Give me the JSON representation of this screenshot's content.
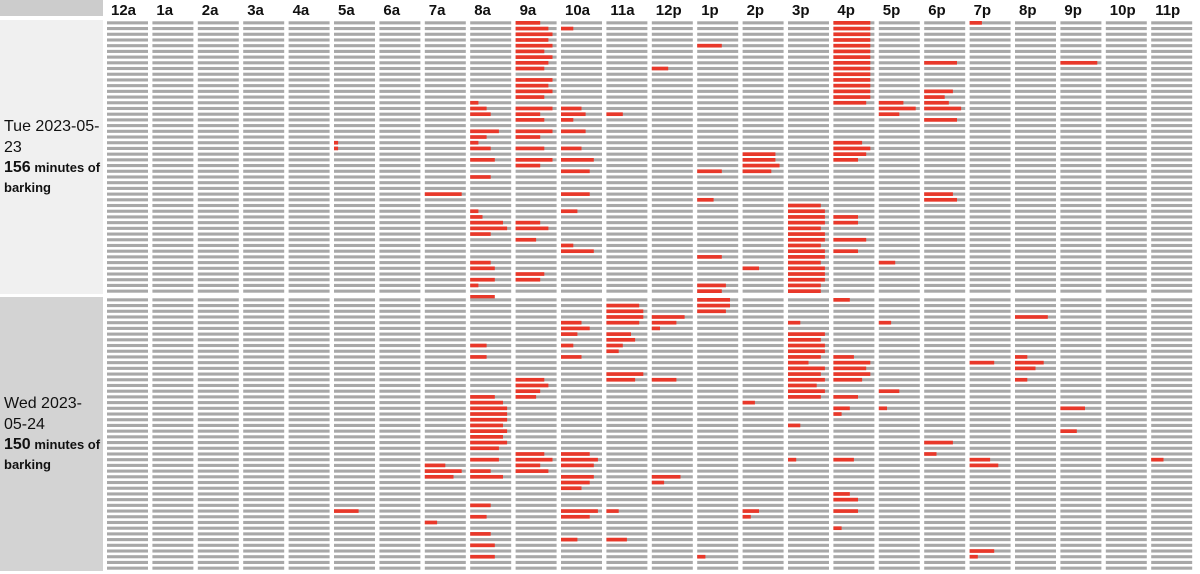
{
  "chart_data": {
    "type": "heatmap",
    "title": "",
    "hours": [
      "12a",
      "1a",
      "2a",
      "3a",
      "4a",
      "5a",
      "6a",
      "7a",
      "8a",
      "9a",
      "10a",
      "11a",
      "12p",
      "1p",
      "2p",
      "3p",
      "4p",
      "5p",
      "6p",
      "7p",
      "8p",
      "9p",
      "10p",
      "11p"
    ],
    "minutes_per_row": 10,
    "rows_per_hour": 6,
    "colors": {
      "bark": "#e8382a",
      "quiet": "#a8a8a8",
      "label_bg_day1": "#f0f0f0",
      "label_bg_day2": "#d3d3d3",
      "header_corner": "#cccccc"
    },
    "days": [
      {
        "date_line": "Tue 2023-05-23",
        "minutes_value": "156",
        "minutes_suffix": "minutes of barking",
        "bark_minutes": {
          "5a": [
            [
              21,
              1
            ],
            [
              22,
              1
            ]
          ],
          "7a": [
            [
              30,
              9
            ]
          ],
          "8a": [
            [
              14,
              2
            ],
            [
              15,
              4
            ],
            [
              16,
              5
            ],
            [
              19,
              7
            ],
            [
              20,
              4
            ],
            [
              21,
              2
            ],
            [
              22,
              5
            ],
            [
              24,
              6
            ],
            [
              27,
              5
            ],
            [
              33,
              2
            ],
            [
              34,
              3
            ],
            [
              35,
              8
            ],
            [
              36,
              9
            ],
            [
              37,
              5
            ],
            [
              42,
              5
            ],
            [
              43,
              6
            ],
            [
              46,
              2
            ],
            [
              48,
              6
            ],
            [
              45,
              6
            ]
          ],
          "9a": [
            [
              0,
              6
            ],
            [
              1,
              8
            ],
            [
              2,
              9
            ],
            [
              3,
              8
            ],
            [
              4,
              9
            ],
            [
              5,
              7
            ],
            [
              6,
              9
            ],
            [
              7,
              8
            ],
            [
              8,
              7
            ],
            [
              10,
              9
            ],
            [
              11,
              8
            ],
            [
              12,
              9
            ],
            [
              13,
              7
            ],
            [
              15,
              9
            ],
            [
              16,
              6
            ],
            [
              17,
              7
            ],
            [
              19,
              9
            ],
            [
              20,
              6
            ],
            [
              22,
              7
            ],
            [
              24,
              9
            ],
            [
              25,
              6
            ],
            [
              35,
              6
            ],
            [
              36,
              8
            ],
            [
              38,
              5
            ],
            [
              44,
              7
            ],
            [
              45,
              6
            ]
          ],
          "10a": [
            [
              1,
              3
            ],
            [
              15,
              5
            ],
            [
              16,
              6
            ],
            [
              17,
              3
            ],
            [
              19,
              6
            ],
            [
              22,
              5
            ],
            [
              24,
              8
            ],
            [
              26,
              7
            ],
            [
              30,
              7
            ],
            [
              33,
              4
            ],
            [
              39,
              3
            ],
            [
              40,
              8
            ]
          ],
          "11a": [
            [
              16,
              4
            ]
          ],
          "12p": [
            [
              8,
              4
            ]
          ],
          "1p": [
            [
              4,
              6
            ],
            [
              26,
              6
            ],
            [
              31,
              4
            ],
            [
              41,
              6
            ],
            [
              46,
              7
            ],
            [
              47,
              6
            ]
          ],
          "2p": [
            [
              23,
              8
            ],
            [
              24,
              8
            ],
            [
              25,
              9
            ],
            [
              26,
              7
            ],
            [
              43,
              4
            ]
          ],
          "3p": [
            [
              32,
              8
            ],
            [
              33,
              9
            ],
            [
              34,
              9
            ],
            [
              35,
              9
            ],
            [
              36,
              8
            ],
            [
              37,
              9
            ],
            [
              38,
              9
            ],
            [
              39,
              8
            ],
            [
              40,
              9
            ],
            [
              41,
              9
            ],
            [
              42,
              8
            ],
            [
              43,
              9
            ],
            [
              44,
              9
            ],
            [
              45,
              9
            ],
            [
              46,
              8
            ],
            [
              47,
              8
            ]
          ],
          "4p": [
            [
              0,
              9
            ],
            [
              1,
              9
            ],
            [
              2,
              9
            ],
            [
              3,
              9
            ],
            [
              4,
              9
            ],
            [
              5,
              9
            ],
            [
              6,
              9
            ],
            [
              7,
              9
            ],
            [
              8,
              9
            ],
            [
              9,
              9
            ],
            [
              10,
              9
            ],
            [
              11,
              9
            ],
            [
              12,
              9
            ],
            [
              13,
              9
            ],
            [
              14,
              8
            ],
            [
              21,
              7
            ],
            [
              22,
              9
            ],
            [
              23,
              8
            ],
            [
              24,
              6
            ],
            [
              34,
              6
            ],
            [
              35,
              6
            ],
            [
              38,
              8
            ],
            [
              40,
              6
            ]
          ],
          "5p": [
            [
              14,
              6
            ],
            [
              15,
              9
            ],
            [
              16,
              5
            ],
            [
              42,
              4
            ]
          ],
          "6p": [
            [
              7,
              8
            ],
            [
              12,
              7
            ],
            [
              13,
              5
            ],
            [
              14,
              6
            ],
            [
              15,
              9
            ],
            [
              17,
              8
            ],
            [
              30,
              7
            ],
            [
              31,
              8
            ]
          ],
          "7p": [
            [
              0,
              3
            ]
          ],
          "9p": [
            [
              7,
              9
            ]
          ]
        }
      },
      {
        "date_line": "Wed 2023-05-24",
        "minutes_value": "150",
        "minutes_suffix": "minutes of barking",
        "bark_minutes": {
          "5a": [
            [
              37,
              6
            ]
          ],
          "7a": [
            [
              29,
              5
            ],
            [
              31,
              7
            ],
            [
              30,
              9
            ],
            [
              39,
              3
            ]
          ],
          "8a": [
            [
              8,
              4
            ],
            [
              10,
              4
            ],
            [
              17,
              6
            ],
            [
              18,
              8
            ],
            [
              19,
              9
            ],
            [
              20,
              9
            ],
            [
              21,
              9
            ],
            [
              22,
              8
            ],
            [
              23,
              9
            ],
            [
              24,
              8
            ],
            [
              25,
              9
            ],
            [
              26,
              7
            ],
            [
              28,
              7
            ],
            [
              30,
              5
            ],
            [
              31,
              8
            ],
            [
              36,
              5
            ],
            [
              38,
              4
            ],
            [
              41,
              5
            ],
            [
              43,
              6
            ],
            [
              45,
              6
            ]
          ],
          "9a": [
            [
              14,
              7
            ],
            [
              15,
              8
            ],
            [
              16,
              6
            ],
            [
              17,
              5
            ],
            [
              27,
              7
            ],
            [
              28,
              9
            ],
            [
              29,
              6
            ],
            [
              30,
              8
            ]
          ],
          "10a": [
            [
              4,
              5
            ],
            [
              5,
              7
            ],
            [
              6,
              4
            ],
            [
              8,
              3
            ],
            [
              10,
              5
            ],
            [
              27,
              7
            ],
            [
              28,
              9
            ],
            [
              29,
              8
            ],
            [
              31,
              8
            ],
            [
              32,
              7
            ],
            [
              33,
              5
            ],
            [
              37,
              9
            ],
            [
              38,
              7
            ],
            [
              42,
              4
            ]
          ],
          "11a": [
            [
              1,
              8
            ],
            [
              2,
              9
            ],
            [
              3,
              9
            ],
            [
              4,
              8
            ],
            [
              6,
              6
            ],
            [
              7,
              7
            ],
            [
              8,
              4
            ],
            [
              9,
              3
            ],
            [
              13,
              9
            ],
            [
              14,
              7
            ],
            [
              37,
              3
            ],
            [
              42,
              5
            ]
          ],
          "12p": [
            [
              3,
              8
            ],
            [
              4,
              6
            ],
            [
              5,
              2
            ],
            [
              14,
              6
            ],
            [
              31,
              7
            ],
            [
              32,
              3
            ]
          ],
          "1p": [
            [
              0,
              8
            ],
            [
              1,
              8
            ],
            [
              2,
              7
            ],
            [
              45,
              2
            ]
          ],
          "2p": [
            [
              18,
              3
            ],
            [
              37,
              4
            ],
            [
              38,
              2
            ]
          ],
          "3p": [
            [
              4,
              3
            ],
            [
              6,
              9
            ],
            [
              7,
              8
            ],
            [
              8,
              9
            ],
            [
              9,
              9
            ],
            [
              10,
              8
            ],
            [
              11,
              5
            ],
            [
              12,
              9
            ],
            [
              13,
              8
            ],
            [
              14,
              9
            ],
            [
              15,
              7
            ],
            [
              16,
              9
            ],
            [
              17,
              8
            ],
            [
              22,
              3
            ],
            [
              28,
              2
            ]
          ],
          "4p": [
            [
              0,
              4
            ],
            [
              10,
              5
            ],
            [
              11,
              9
            ],
            [
              12,
              8
            ],
            [
              13,
              9
            ],
            [
              14,
              7
            ],
            [
              17,
              6
            ],
            [
              19,
              4
            ],
            [
              20,
              2
            ],
            [
              28,
              5
            ],
            [
              34,
              4
            ],
            [
              35,
              6
            ],
            [
              37,
              6
            ],
            [
              40,
              2
            ]
          ],
          "5p": [
            [
              4,
              3
            ],
            [
              16,
              5
            ],
            [
              19,
              2
            ]
          ],
          "6p": [
            [
              25,
              7
            ],
            [
              27,
              3
            ]
          ],
          "7p": [
            [
              11,
              6
            ],
            [
              28,
              5
            ],
            [
              29,
              7
            ],
            [
              44,
              6
            ],
            [
              45,
              2
            ]
          ],
          "8p": [
            [
              3,
              8
            ],
            [
              10,
              3
            ],
            [
              11,
              7
            ],
            [
              12,
              5
            ],
            [
              14,
              3
            ]
          ],
          "9p": [
            [
              19,
              6
            ],
            [
              23,
              4
            ]
          ],
          "11p": [
            [
              28,
              3
            ]
          ]
        }
      }
    ]
  }
}
